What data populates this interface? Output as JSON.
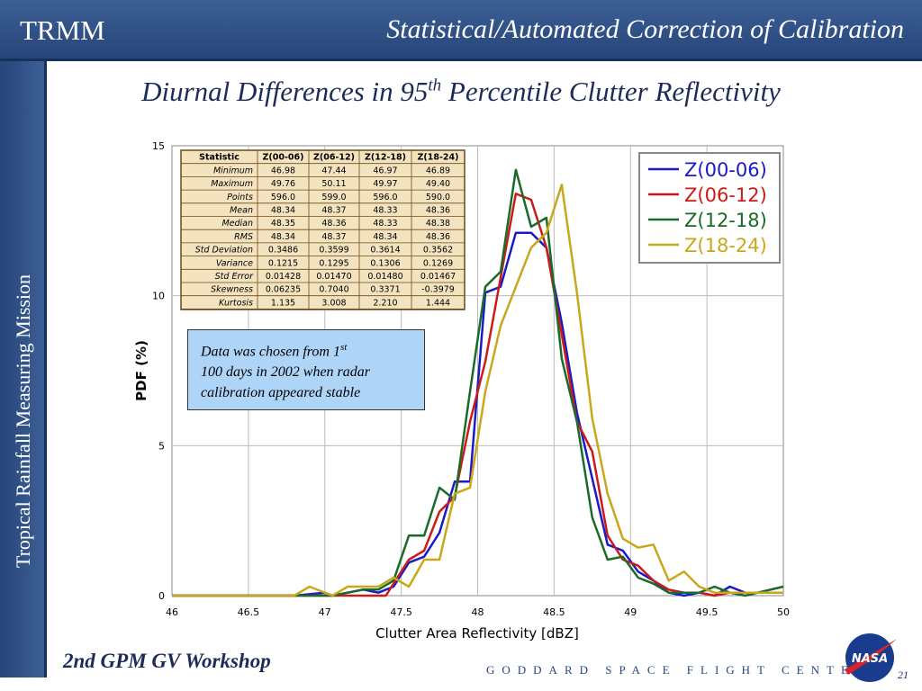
{
  "header": {
    "brand": "TRMM",
    "title": "Statistical/Automated Correction of Calibration"
  },
  "sidebar": {
    "label": "Tropical Rainfall Measuring Mission"
  },
  "slide": {
    "title_prefix": "Diurnal Differences in 95",
    "title_sup": "th",
    "title_suffix": " Percentile Clutter Reflectivity"
  },
  "footer": {
    "workshop": "2nd GPM GV Workshop",
    "org": "GODDARD SPACE FLIGHT CENTER",
    "page": "21",
    "logo_text": "NASA"
  },
  "colors": {
    "z0006": "#1a1ac8",
    "z0612": "#cc1a1a",
    "z1218": "#1a6b2a",
    "z1824": "#c8a81a",
    "note_bg": "#aed4f8",
    "table_bg": "#f3e3bf"
  },
  "table": {
    "headers": [
      "Statistic",
      "Z(00-06)",
      "Z(06-12)",
      "Z(12-18)",
      "Z(18-24)"
    ],
    "rows": [
      [
        "Minimum",
        "46.98",
        "47.44",
        "46.97",
        "46.89"
      ],
      [
        "Maximum",
        "49.76",
        "50.11",
        "49.97",
        "49.40"
      ],
      [
        "Points",
        "596.0",
        "599.0",
        "596.0",
        "590.0"
      ],
      [
        "Mean",
        "48.34",
        "48.37",
        "48.33",
        "48.36"
      ],
      [
        "Median",
        "48.35",
        "48.36",
        "48.33",
        "48.38"
      ],
      [
        "RMS",
        "48.34",
        "48.37",
        "48.34",
        "48.36"
      ],
      [
        "Std Deviation",
        "0.3486",
        "0.3599",
        "0.3614",
        "0.3562"
      ],
      [
        "Variance",
        "0.1215",
        "0.1295",
        "0.1306",
        "0.1269"
      ],
      [
        "Std Error",
        "0.01428",
        "0.01470",
        "0.01480",
        "0.01467"
      ],
      [
        "Skewness",
        "0.06235",
        "0.7040",
        "0.3371",
        "-0.3979"
      ],
      [
        "Kurtosis",
        "1.135",
        "3.008",
        "2.210",
        "1.444"
      ]
    ]
  },
  "note": {
    "line1": "Data was chosen from 1",
    "line1_sup": "st",
    "line2": "100 days in 2002 when radar",
    "line3": "calibration appeared stable"
  },
  "chart_data": {
    "type": "line",
    "xlabel": "Clutter Area Reflectivity [dBZ]",
    "ylabel": "PDF (%)",
    "xlim": [
      46,
      50
    ],
    "ylim": [
      0,
      15
    ],
    "xticks": [
      46,
      46.5,
      47,
      47.5,
      48,
      48.5,
      49,
      49.5,
      50
    ],
    "xtick_labels": [
      "46",
      "46.5",
      "47",
      "47.5",
      "48",
      "48.5",
      "49",
      "49.5",
      "50"
    ],
    "yticks": [
      0,
      5,
      10,
      15
    ],
    "ytick_labels": [
      "0",
      "5",
      "10",
      "15"
    ],
    "grid": true,
    "legend_position": "top-right",
    "series": [
      {
        "name": "Z(00-06)",
        "color": "#1a1ac8",
        "x": [
          46,
          46.8,
          47,
          47.05,
          47.15,
          47.25,
          47.35,
          47.45,
          47.55,
          47.65,
          47.75,
          47.85,
          47.95,
          48.05,
          48.15,
          48.25,
          48.35,
          48.45,
          48.55,
          48.65,
          48.75,
          48.85,
          48.95,
          49.05,
          49.15,
          49.25,
          49.35,
          49.45,
          49.55,
          49.65,
          49.75,
          50
        ],
        "y": [
          0,
          0,
          0.1,
          0,
          0.1,
          0.2,
          0.1,
          0.3,
          1.1,
          1.3,
          2.1,
          3.8,
          3.8,
          10.1,
          10.3,
          12.1,
          12.1,
          11.6,
          9.1,
          6.1,
          3.9,
          1.7,
          1.5,
          0.8,
          0.5,
          0.1,
          0,
          0.1,
          0,
          0.3,
          0.1,
          0.1
        ]
      },
      {
        "name": "Z(06-12)",
        "color": "#cc1a1a",
        "x": [
          46,
          47.4,
          47.55,
          47.65,
          47.75,
          47.85,
          47.95,
          48.05,
          48.15,
          48.25,
          48.35,
          48.45,
          48.55,
          48.65,
          48.75,
          48.85,
          48.95,
          49.05,
          49.15,
          49.25,
          49.35,
          49.45,
          49.55,
          49.65,
          49.75,
          49.85,
          50
        ],
        "y": [
          0,
          0,
          1.2,
          1.5,
          2.8,
          3.3,
          5.8,
          7.8,
          10.6,
          13.4,
          13.2,
          11.6,
          8.7,
          5.8,
          4.8,
          2.0,
          1.2,
          1.0,
          0.5,
          0.2,
          0.1,
          0.1,
          0,
          0.1,
          0.1,
          0.1,
          0.1
        ]
      },
      {
        "name": "Z(12-18)",
        "color": "#1a6b2a",
        "x": [
          46,
          46.8,
          47.05,
          47.15,
          47.25,
          47.35,
          47.45,
          47.55,
          47.65,
          47.75,
          47.85,
          47.95,
          48.05,
          48.15,
          48.25,
          48.35,
          48.45,
          48.55,
          48.65,
          48.75,
          48.85,
          48.95,
          49.05,
          49.15,
          49.25,
          49.35,
          49.45,
          49.55,
          49.65,
          49.75,
          50
        ],
        "y": [
          0,
          0,
          0,
          0.1,
          0.2,
          0.2,
          0.5,
          2.0,
          2.0,
          3.6,
          3.2,
          6.8,
          10.3,
          10.8,
          14.2,
          12.3,
          12.6,
          7.9,
          5.8,
          2.6,
          1.2,
          1.3,
          0.6,
          0.4,
          0.1,
          0.1,
          0.1,
          0.3,
          0.1,
          0,
          0.3
        ]
      },
      {
        "name": "Z(18-24)",
        "color": "#c8a81a",
        "x": [
          46,
          46.8,
          46.9,
          47.05,
          47.15,
          47.25,
          47.35,
          47.45,
          47.55,
          47.65,
          47.75,
          47.85,
          47.95,
          48.05,
          48.15,
          48.25,
          48.35,
          48.45,
          48.55,
          48.65,
          48.75,
          48.85,
          48.95,
          49.05,
          49.15,
          49.25,
          49.35,
          49.45,
          49.55,
          50
        ],
        "y": [
          0,
          0,
          0.3,
          0,
          0.3,
          0.3,
          0.3,
          0.6,
          0.3,
          1.2,
          1.2,
          3.4,
          3.6,
          6.8,
          9.0,
          10.3,
          11.6,
          12.1,
          13.7,
          10.1,
          5.9,
          3.4,
          1.9,
          1.6,
          1.7,
          0.5,
          0.8,
          0.3,
          0.1,
          0.1
        ]
      }
    ]
  }
}
